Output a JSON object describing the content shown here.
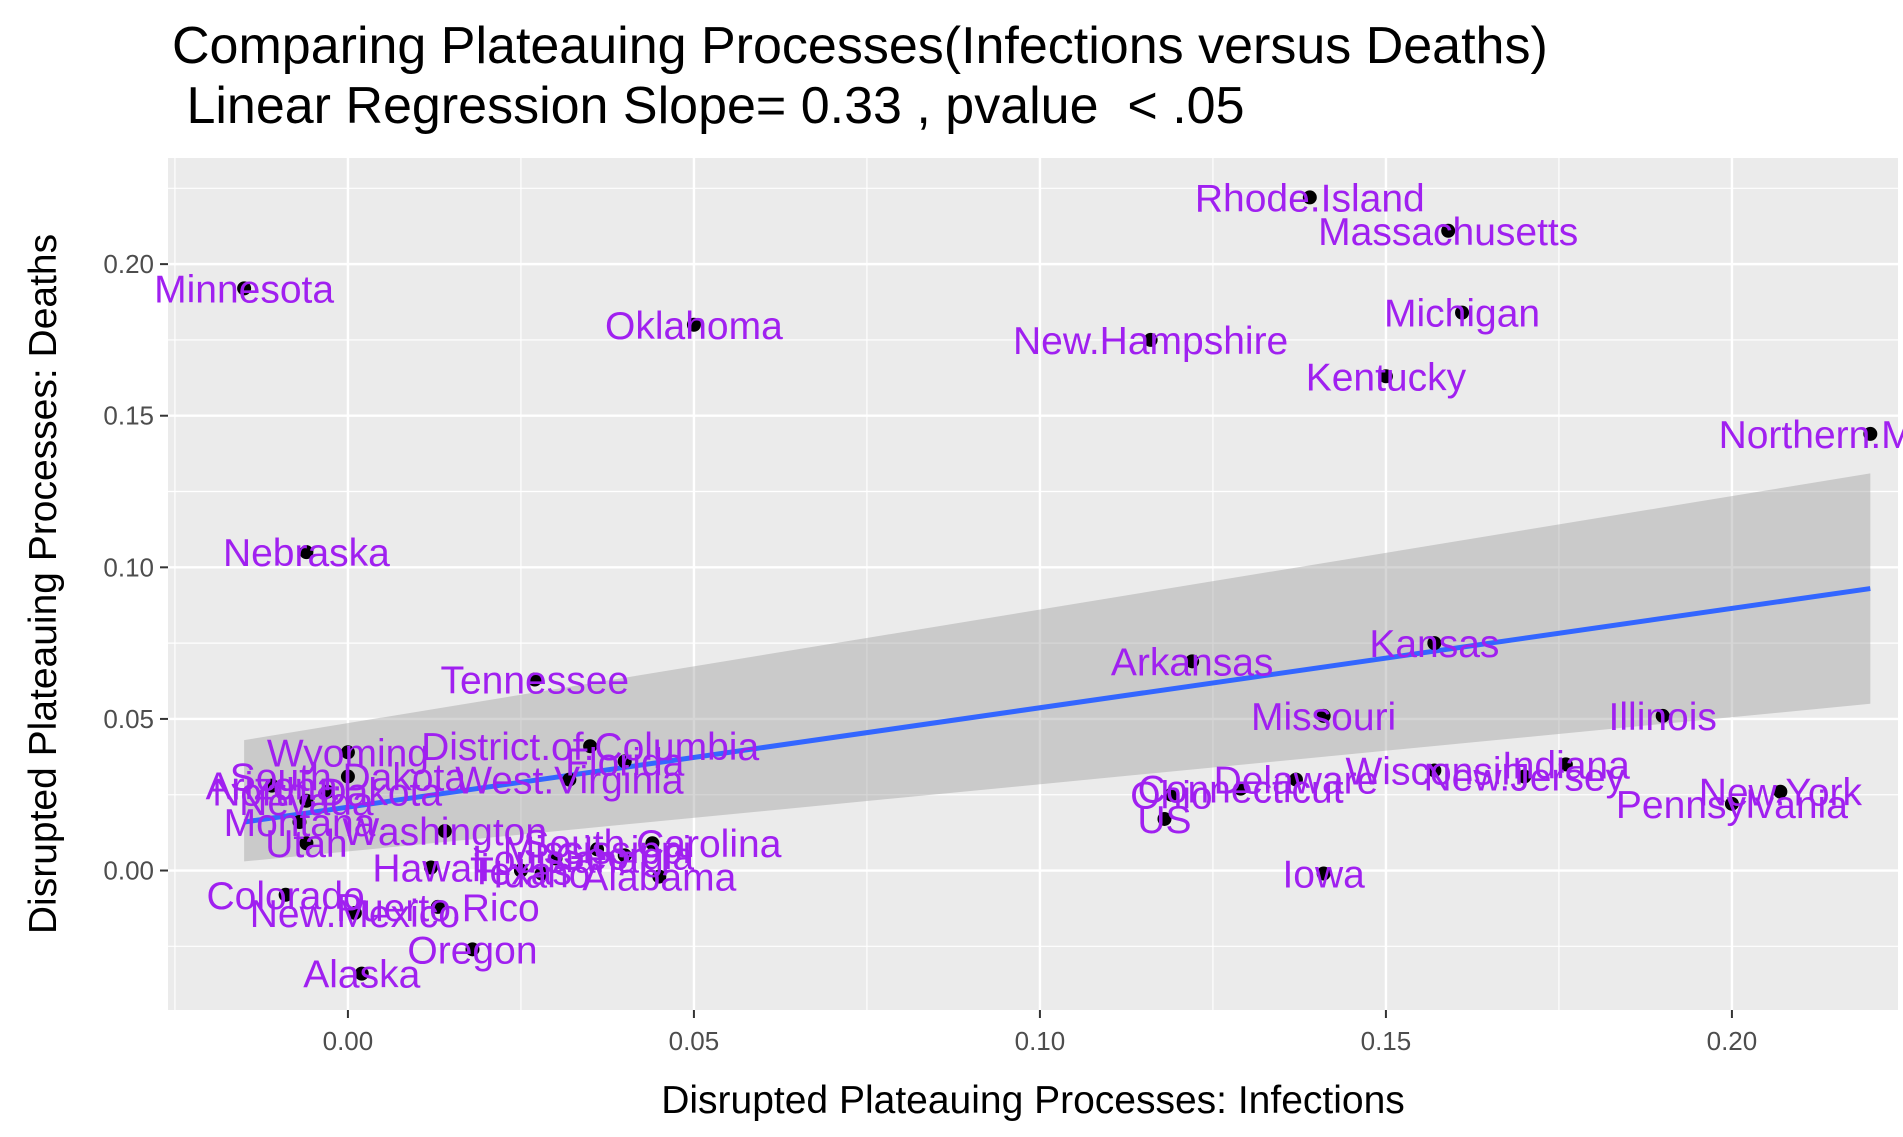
{
  "chart_data": {
    "type": "scatter",
    "title": "Comparing Plateauing Processes(Infections versus Deaths)",
    "subtitle": " Linear Regression Slope= 0.33 , pvalue  < .05",
    "xlabel": "Disrupted Plateauing Processes: Infections",
    "ylabel": "Disrupted Plateauing Processes: Deaths",
    "xlim": [
      -0.026,
      0.224
    ],
    "ylim": [
      -0.046,
      0.235
    ],
    "xticks": [
      0.0,
      0.05,
      0.1,
      0.15,
      0.2
    ],
    "xtick_labels": [
      "0.00",
      "0.05",
      "0.10",
      "0.15",
      "0.20"
    ],
    "yticks": [
      0.0,
      0.05,
      0.1,
      0.15,
      0.2
    ],
    "ytick_labels": [
      "0.00",
      "0.05",
      "0.10",
      "0.15",
      "0.20"
    ],
    "grid": true,
    "colors": {
      "point": "#000000",
      "label": "#a020f0",
      "line": "#3366ff",
      "band": "#999999",
      "panel": "#ebebeb",
      "grid": "#ffffff"
    },
    "regression": {
      "slope": 0.33,
      "x": [
        -0.015,
        0.22
      ],
      "y": [
        0.016,
        0.093
      ],
      "ci_lower": [
        0.003,
        0.055
      ],
      "ci_upper": [
        0.043,
        0.131
      ]
    },
    "points": [
      {
        "label": "Rhode.Island",
        "x": 0.139,
        "y": 0.222
      },
      {
        "label": "Massachusetts",
        "x": 0.159,
        "y": 0.211
      },
      {
        "label": "Minnesota",
        "x": -0.015,
        "y": 0.192
      },
      {
        "label": "Michigan",
        "x": 0.161,
        "y": 0.184
      },
      {
        "label": "Oklahoma",
        "x": 0.05,
        "y": 0.18
      },
      {
        "label": "New.Hampshire",
        "x": 0.116,
        "y": 0.175
      },
      {
        "label": "Kentucky",
        "x": 0.15,
        "y": 0.163
      },
      {
        "label": "Northern.Mariana",
        "x": 0.22,
        "y": 0.144
      },
      {
        "label": "Nebraska",
        "x": -0.006,
        "y": 0.105
      },
      {
        "label": "Kansas",
        "x": 0.157,
        "y": 0.075
      },
      {
        "label": "Arkansas",
        "x": 0.122,
        "y": 0.069
      },
      {
        "label": "Tennessee",
        "x": 0.027,
        "y": 0.063
      },
      {
        "label": "Missouri",
        "x": 0.141,
        "y": 0.051
      },
      {
        "label": "Illinois",
        "x": 0.19,
        "y": 0.051
      },
      {
        "label": "District.of.Columbia",
        "x": 0.035,
        "y": 0.041
      },
      {
        "label": "Wyoming",
        "x": 0.0,
        "y": 0.039
      },
      {
        "label": "Florida",
        "x": 0.04,
        "y": 0.036
      },
      {
        "label": "West.Virginia",
        "x": 0.032,
        "y": 0.03
      },
      {
        "label": "South.Dakota",
        "x": 0.0,
        "y": 0.031
      },
      {
        "label": "Wisconsin",
        "x": 0.157,
        "y": 0.033
      },
      {
        "label": "Indiana",
        "x": 0.176,
        "y": 0.035
      },
      {
        "label": "New.Jersey",
        "x": 0.17,
        "y": 0.031
      },
      {
        "label": "Delaware",
        "x": 0.137,
        "y": 0.03
      },
      {
        "label": "Connecticut",
        "x": 0.129,
        "y": 0.027
      },
      {
        "label": "Ohio",
        "x": 0.119,
        "y": 0.025
      },
      {
        "label": "New.York",
        "x": 0.207,
        "y": 0.026
      },
      {
        "label": "Pennsylvania",
        "x": 0.2,
        "y": 0.022
      },
      {
        "label": "US",
        "x": 0.118,
        "y": 0.017
      },
      {
        "label": "Arizona",
        "x": -0.011,
        "y": 0.028
      },
      {
        "label": "North.Dakota",
        "x": -0.003,
        "y": 0.026
      },
      {
        "label": "Nevada",
        "x": -0.006,
        "y": 0.023
      },
      {
        "label": "Montana",
        "x": -0.007,
        "y": 0.016
      },
      {
        "label": "Utah",
        "x": -0.006,
        "y": 0.009
      },
      {
        "label": "Washington",
        "x": 0.014,
        "y": 0.013
      },
      {
        "label": "South.Carolina",
        "x": 0.044,
        "y": 0.009
      },
      {
        "label": "Louisiana",
        "x": 0.03,
        "y": 0.004
      },
      {
        "label": "Mississippi",
        "x": 0.036,
        "y": 0.007
      },
      {
        "label": "Georgia",
        "x": 0.04,
        "y": 0.005
      },
      {
        "label": "Hawaii",
        "x": 0.012,
        "y": 0.001
      },
      {
        "label": "Texas",
        "x": 0.025,
        "y": 0.0
      },
      {
        "label": "Idaho",
        "x": 0.028,
        "y": -0.001
      },
      {
        "label": "Alabama",
        "x": 0.045,
        "y": -0.002
      },
      {
        "label": "Iowa",
        "x": 0.141,
        "y": -0.001
      },
      {
        "label": "Colorado",
        "x": -0.009,
        "y": -0.008
      },
      {
        "label": "Puerto.Rico",
        "x": 0.013,
        "y": -0.012
      },
      {
        "label": "New.Mexico",
        "x": 0.001,
        "y": -0.014
      },
      {
        "label": "Oregon",
        "x": 0.018,
        "y": -0.026
      },
      {
        "label": "Alaska",
        "x": 0.002,
        "y": -0.034
      }
    ]
  }
}
